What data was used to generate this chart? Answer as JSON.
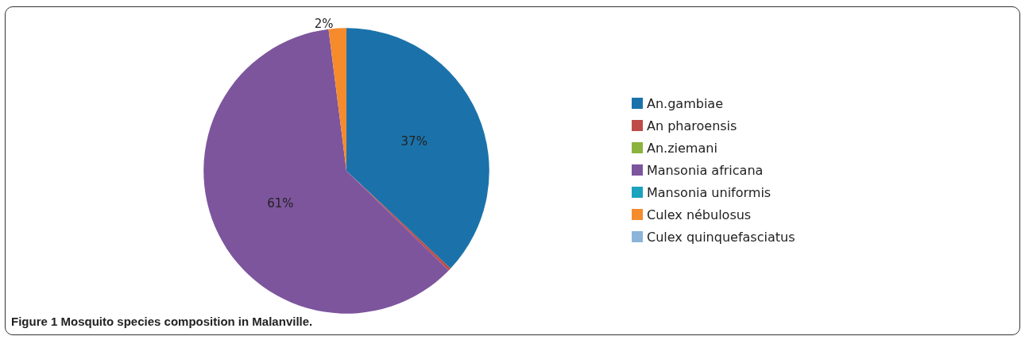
{
  "chart_data": {
    "type": "pie",
    "categories": [
      "An.gambiae",
      "An pharoensis",
      "An.ziemani",
      "Mansonia africana",
      "Mansonia uniformis",
      "Culex nébulosus",
      "Culex quinquefasciatus"
    ],
    "values": [
      37,
      0.3,
      0,
      60.7,
      0,
      2,
      0
    ],
    "colors": [
      "#1b72aa",
      "#be4b48",
      "#8cb33e",
      "#7d559d",
      "#1aa3bd",
      "#f58b2d",
      "#8cb4d9"
    ],
    "value_labels": [
      "37%",
      null,
      null,
      "61%",
      null,
      "2%",
      null
    ],
    "legend": "right",
    "annotations": [
      "Figure 1 Mosquito species composition in Malanville."
    ]
  }
}
